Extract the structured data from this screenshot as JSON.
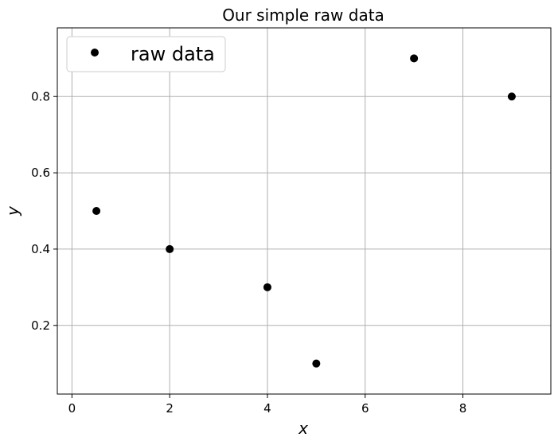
{
  "chart_data": {
    "type": "scatter",
    "title": "Our simple raw data",
    "xlabel": "x",
    "ylabel": "y",
    "xlim": [
      -0.3,
      9.8
    ],
    "ylim": [
      0.02,
      0.98
    ],
    "xticks": [
      0,
      2,
      4,
      6,
      8
    ],
    "yticks": [
      0.2,
      0.4,
      0.6,
      0.8
    ],
    "xtick_labels": [
      "0",
      "2",
      "4",
      "6",
      "8"
    ],
    "ytick_labels": [
      "0.2",
      "0.4",
      "0.6",
      "0.8"
    ],
    "grid": true,
    "legend_position": "top-left",
    "series": [
      {
        "name": "raw data",
        "color": "#000000",
        "marker": "circle",
        "x": [
          0.5,
          2,
          4,
          5,
          7,
          9
        ],
        "y": [
          0.5,
          0.4,
          0.3,
          0.1,
          0.9,
          0.8
        ]
      }
    ]
  }
}
